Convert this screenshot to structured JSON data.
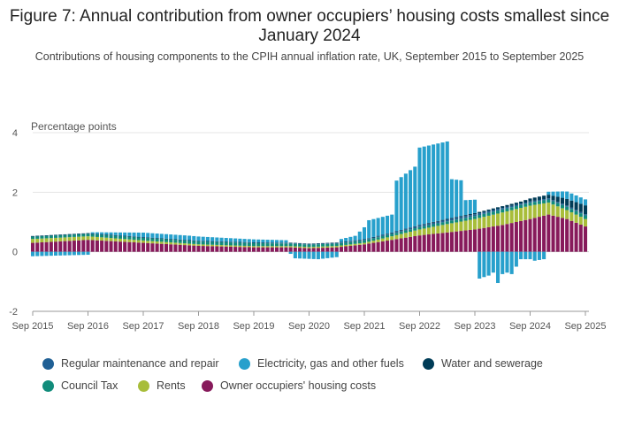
{
  "chart_data": {
    "type": "bar",
    "stacked": true,
    "title": "Figure 7: Annual contribution from owner occupiers’ housing costs smallest since January 2024",
    "subtitle": "Contributions of housing components to the CPIH annual inflation rate, UK, September 2015 to September 2025",
    "ylabel": "Percentage points",
    "ylim": [
      -2,
      4
    ],
    "yticks": [
      "4",
      "2",
      "0",
      "-2"
    ],
    "ytick_values": [
      4,
      2,
      0,
      -2
    ],
    "xtick_labels": [
      "Sep 2015",
      "Sep 2016",
      "Sep 2017",
      "Sep 2018",
      "Sep 2019",
      "Sep 2020",
      "Sep 2021",
      "Sep 2022",
      "Sep 2023",
      "Sep 2024",
      "Sep 2025"
    ],
    "grid": true,
    "legend_position": "bottom",
    "series": [
      {
        "name": "Regular maintenance and repair",
        "color": "#206095",
        "anchors": [
          [
            0,
            0.01
          ],
          [
            36,
            0.01
          ],
          [
            66,
            0.02
          ],
          [
            78,
            0.03
          ],
          [
            84,
            0.05
          ],
          [
            96,
            0.06
          ],
          [
            108,
            0.04
          ],
          [
            120,
            0.04
          ]
        ]
      },
      {
        "name": "Electricity, gas and other fuels",
        "color": "#27A0CC",
        "anchors": [
          [
            0,
            -0.15
          ],
          [
            12,
            -0.1
          ],
          [
            13,
            0.04
          ],
          [
            24,
            0.15
          ],
          [
            34,
            0.15
          ],
          [
            48,
            0.1
          ],
          [
            55,
            0.08
          ],
          [
            57,
            -0.22
          ],
          [
            62,
            -0.25
          ],
          [
            66,
            -0.18
          ],
          [
            67,
            0.1
          ],
          [
            70,
            0.15
          ],
          [
            72,
            0.4
          ],
          [
            73,
            0.6
          ],
          [
            78,
            0.6
          ],
          [
            79,
            1.7
          ],
          [
            83,
            2.0
          ],
          [
            84,
            2.6
          ],
          [
            90,
            2.6
          ],
          [
            91,
            1.3
          ],
          [
            93,
            1.2
          ],
          [
            94,
            0.5
          ],
          [
            96,
            0.45
          ],
          [
            97,
            -0.9
          ],
          [
            99,
            -0.8
          ],
          [
            100,
            -0.7
          ],
          [
            101,
            -1.05
          ],
          [
            102,
            -0.75
          ],
          [
            103,
            -0.7
          ],
          [
            104,
            -0.75
          ],
          [
            106,
            -0.25
          ],
          [
            108,
            -0.25
          ],
          [
            109,
            -0.3
          ],
          [
            111,
            -0.25
          ],
          [
            112,
            0.1
          ],
          [
            116,
            0.25
          ],
          [
            120,
            0.2
          ]
        ]
      },
      {
        "name": "Water and sewerage",
        "color": "#003C57",
        "anchors": [
          [
            0,
            0.01
          ],
          [
            36,
            0.01
          ],
          [
            84,
            0.02
          ],
          [
            96,
            0.04
          ],
          [
            101,
            0.06
          ],
          [
            106,
            0.07
          ],
          [
            108,
            0.1
          ],
          [
            112,
            0.12
          ],
          [
            115,
            0.2
          ],
          [
            120,
            0.3
          ]
        ]
      },
      {
        "name": "Council Tax",
        "color": "#118C7B",
        "anchors": [
          [
            0,
            0.08
          ],
          [
            36,
            0.1
          ],
          [
            48,
            0.1
          ],
          [
            60,
            0.08
          ],
          [
            72,
            0.08
          ],
          [
            84,
            0.08
          ],
          [
            96,
            0.1
          ],
          [
            108,
            0.1
          ],
          [
            120,
            0.12
          ]
        ]
      },
      {
        "name": "Rents",
        "color": "#A8BD3A",
        "anchors": [
          [
            0,
            0.13
          ],
          [
            12,
            0.12
          ],
          [
            24,
            0.08
          ],
          [
            36,
            0.05
          ],
          [
            48,
            0.04
          ],
          [
            60,
            0.04
          ],
          [
            72,
            0.05
          ],
          [
            78,
            0.12
          ],
          [
            84,
            0.2
          ],
          [
            90,
            0.28
          ],
          [
            96,
            0.35
          ],
          [
            102,
            0.42
          ],
          [
            108,
            0.45
          ],
          [
            112,
            0.4
          ],
          [
            116,
            0.3
          ],
          [
            120,
            0.25
          ]
        ]
      },
      {
        "name": "Owner occupiers' housing costs",
        "color": "#871A5B",
        "anchors": [
          [
            0,
            0.3
          ],
          [
            12,
            0.4
          ],
          [
            24,
            0.3
          ],
          [
            36,
            0.2
          ],
          [
            48,
            0.15
          ],
          [
            56,
            0.15
          ],
          [
            60,
            0.12
          ],
          [
            66,
            0.15
          ],
          [
            72,
            0.25
          ],
          [
            78,
            0.4
          ],
          [
            84,
            0.55
          ],
          [
            90,
            0.65
          ],
          [
            96,
            0.75
          ],
          [
            102,
            0.9
          ],
          [
            108,
            1.1
          ],
          [
            112,
            1.25
          ],
          [
            116,
            1.1
          ],
          [
            120,
            0.85
          ]
        ]
      }
    ]
  }
}
